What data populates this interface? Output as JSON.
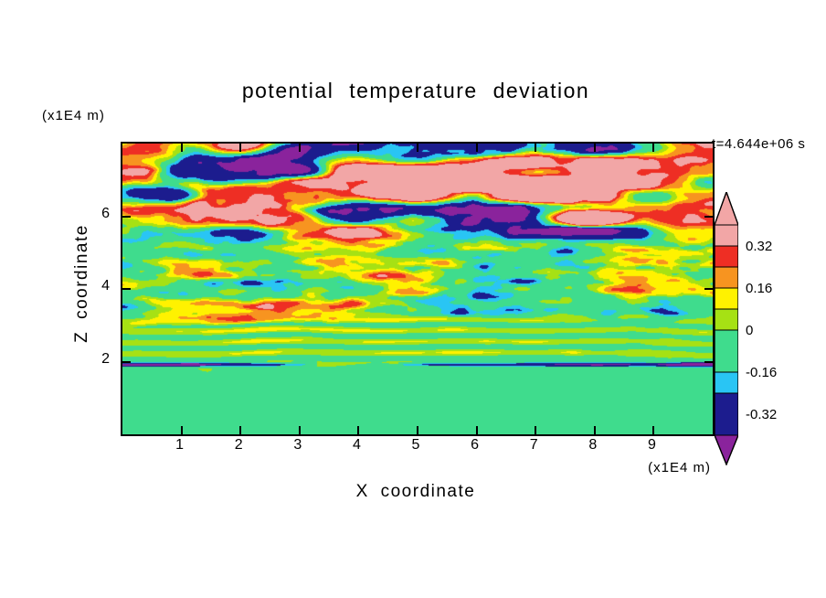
{
  "chart_data": {
    "type": "filled-contour",
    "title": "potential temperature deviation",
    "time_label": "t=4.644e+06 s",
    "xlabel": "X coordinate",
    "x_units": "(x1E4 m)",
    "ylabel": "Z coordinate",
    "y_units": "(x1E4 m)",
    "x_range": [
      0,
      10
    ],
    "y_range": [
      0,
      8
    ],
    "x_ticks": [
      1,
      2,
      3,
      4,
      5,
      6,
      7,
      8,
      9
    ],
    "y_ticks": [
      2,
      4,
      6
    ],
    "value_name": "potential temperature deviation",
    "contour_interval": 0.08,
    "colorbar": {
      "labels": [
        {
          "text": "0.32",
          "u": 1
        },
        {
          "text": "0.16",
          "u": 3
        },
        {
          "text": "0",
          "u": 5
        },
        {
          "text": "-0.16",
          "u": 7
        },
        {
          "text": "-0.32",
          "u": 9
        }
      ],
      "segments": [
        {
          "color": "#f2a6a6",
          "units": 1
        },
        {
          "color": "#ee2e24",
          "units": 1
        },
        {
          "color": "#f79420",
          "units": 1
        },
        {
          "color": "#fff200",
          "units": 1
        },
        {
          "color": "#a6e114",
          "units": 1
        },
        {
          "color": "#3fdc8d",
          "units": 2
        },
        {
          "color": "#29c5f4",
          "units": 1
        },
        {
          "color": "#1c1c8e",
          "units": 2
        }
      ],
      "tip_top_color": "#f2a6a6",
      "tip_bottom_color": "#8a239c"
    },
    "palette": [
      {
        "min": 0.32,
        "color": "#f2a6a6"
      },
      {
        "min": 0.24,
        "color": "#ee2e24"
      },
      {
        "min": 0.16,
        "color": "#f79420"
      },
      {
        "min": 0.08,
        "color": "#fff200"
      },
      {
        "min": 0.0,
        "color": "#a6e114"
      },
      {
        "min": -0.16,
        "color": "#3fdc8d"
      },
      {
        "min": -0.24,
        "color": "#29c5f4"
      },
      {
        "min": -0.4,
        "color": "#1c1c8e"
      },
      {
        "min": -99,
        "color": "#8a239c"
      }
    ],
    "field_regions": [
      {
        "name": "upper-band-layer",
        "z_from": 5.4,
        "z_to": 8.0,
        "amplitude": 0.55,
        "style": "elongated pink/purple bands with red-orange and blue fringes"
      },
      {
        "name": "mid-turbulent-layer",
        "z_from": 3.1,
        "z_to": 5.4,
        "amplitude": 0.4,
        "style": "chaotic mixed patches in all palette colors"
      },
      {
        "name": "stripe-layer",
        "z_from": 2.0,
        "z_to": 3.1,
        "amplitude": 0.09,
        "style": "thin wavy horizontal green/yellow stripes"
      },
      {
        "name": "lower-quiet-layer",
        "z_from": 0.0,
        "z_to": 2.0,
        "amplitude": 0.06,
        "style": "near-zero spring green with yellow-green blobs and a thin dark streak near z=1.9"
      }
    ]
  }
}
